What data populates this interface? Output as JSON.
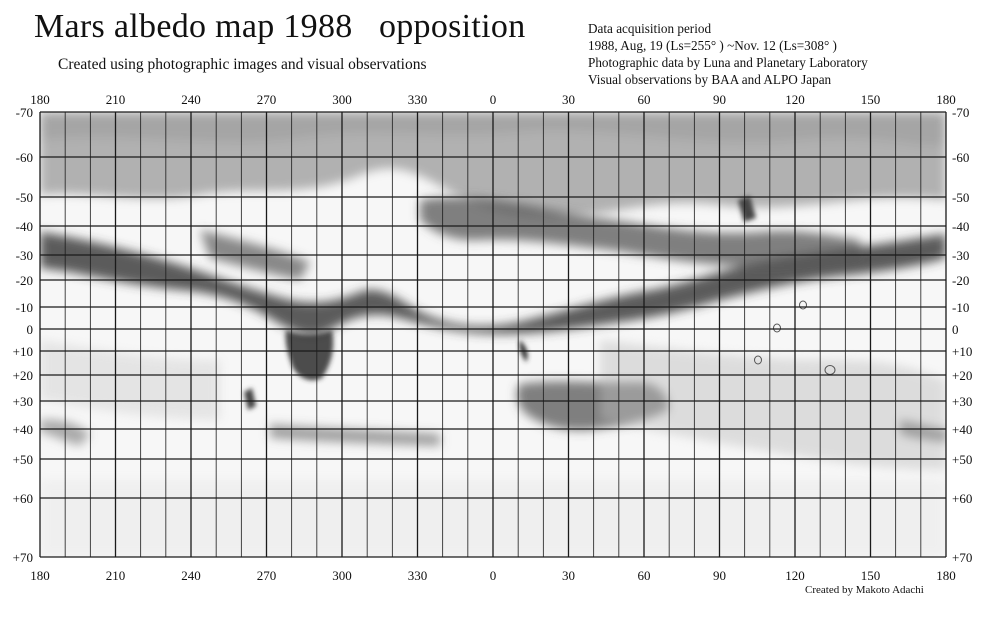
{
  "header": {
    "title": "Mars albedo map 1988   opposition",
    "subtitle": "Created using photographic images and visual observations"
  },
  "info": {
    "line1": "Data acquisition period",
    "line2": "1988, Aug, 19 (Ls=255°  )  ~Nov. 12 (Ls=308°  )",
    "line3": "Photographic data by Luna and Planetary Laboratory",
    "line4": "Visual observations by BAA and ALPO Japan"
  },
  "credit": "Created by Makoto Adachi",
  "map": {
    "longitude_labels": [
      "180",
      "210",
      "240",
      "270",
      "300",
      "330",
      "0",
      "30",
      "60",
      "90",
      "120",
      "150",
      "180"
    ],
    "latitude_labels": [
      "-70",
      "-60",
      "-50",
      "-40",
      "-30",
      "-20",
      "-10",
      "0",
      "+10",
      "+20",
      "+30",
      "+40",
      "+50",
      "+60",
      "+70"
    ],
    "colors": {
      "grid": "#1a1a1a",
      "dark_albedo": "#3a3a3a",
      "paper": "#ffffff"
    }
  }
}
